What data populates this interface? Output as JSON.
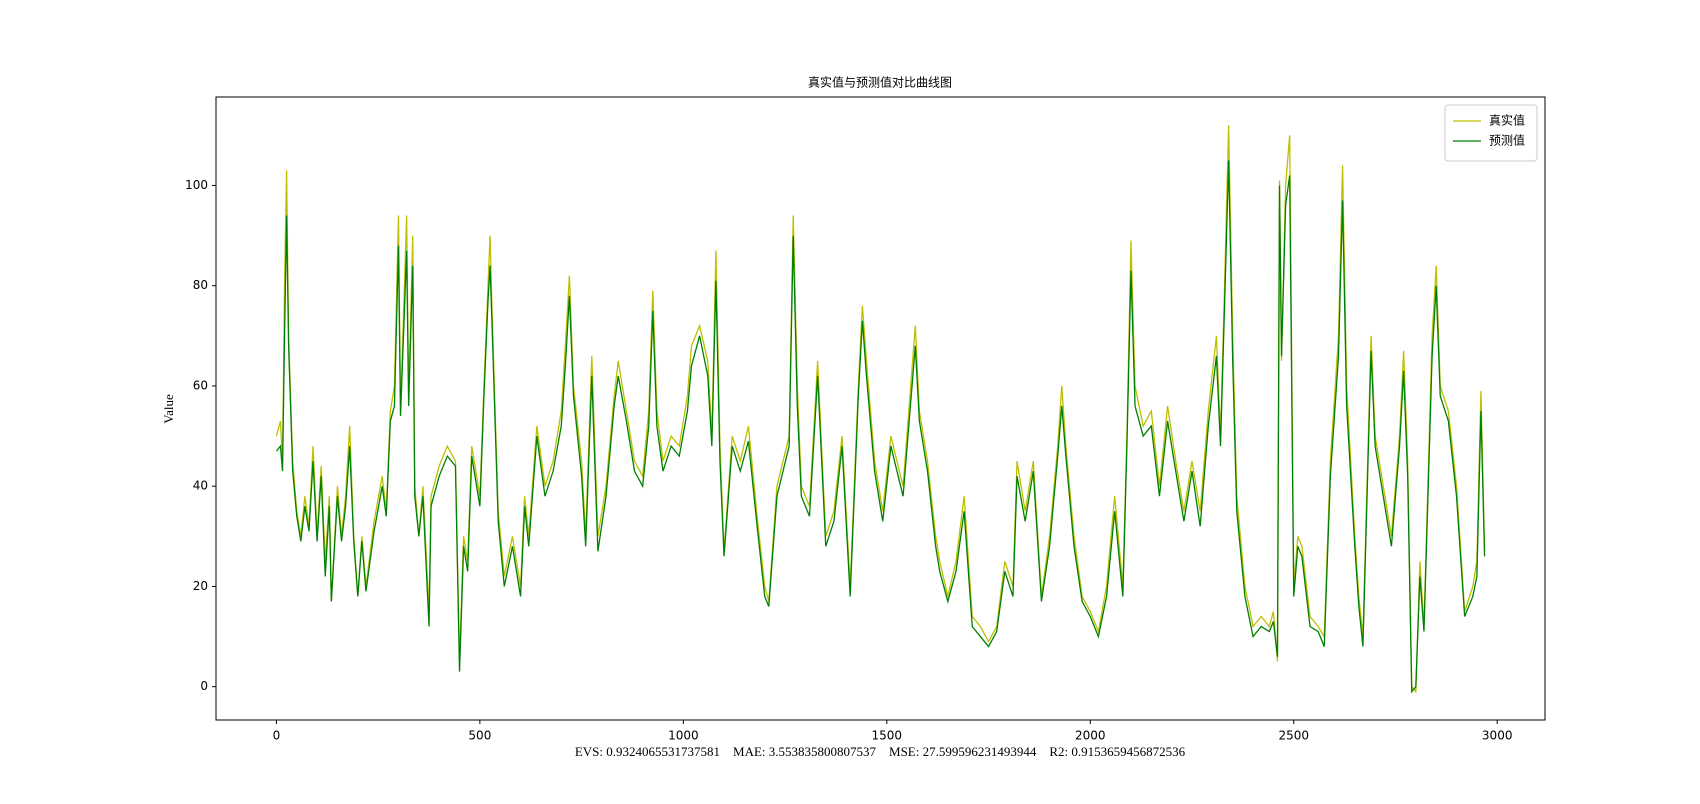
{
  "chart_data": {
    "type": "line",
    "title": "真实值与预测值对比曲线图",
    "y_label": "Value",
    "x_label": "EVS: 0.9324065531737581    MAE: 3.553835800807537    MSE: 27.599596231493944    R2: 0.9153659456872536",
    "legend": "upper right",
    "x": [
      0,
      10,
      15,
      20,
      25,
      30,
      40,
      50,
      60,
      70,
      80,
      90,
      100,
      110,
      120,
      130,
      135,
      150,
      160,
      170,
      180,
      190,
      200,
      210,
      220,
      240,
      260,
      270,
      280,
      290,
      300,
      305,
      320,
      325,
      335,
      340,
      350,
      360,
      375,
      380,
      400,
      420,
      440,
      450,
      460,
      470,
      480,
      500,
      510,
      520,
      525,
      530,
      545,
      560,
      580,
      600,
      610,
      620,
      640,
      660,
      680,
      700,
      710,
      720,
      730,
      750,
      760,
      775,
      790,
      810,
      830,
      840,
      860,
      880,
      900,
      915,
      925,
      935,
      950,
      970,
      990,
      1010,
      1020,
      1040,
      1060,
      1070,
      1080,
      1090,
      1100,
      1120,
      1140,
      1160,
      1180,
      1200,
      1210,
      1230,
      1260,
      1270,
      1280,
      1290,
      1310,
      1330,
      1350,
      1370,
      1390,
      1410,
      1430,
      1440,
      1450,
      1470,
      1490,
      1510,
      1540,
      1570,
      1580,
      1600,
      1620,
      1630,
      1650,
      1670,
      1690,
      1710,
      1730,
      1750,
      1770,
      1790,
      1810,
      1820,
      1840,
      1860,
      1880,
      1900,
      1920,
      1930,
      1940,
      1960,
      1980,
      2000,
      2020,
      2040,
      2060,
      2080,
      2090,
      2100,
      2110,
      2130,
      2150,
      2170,
      2190,
      2210,
      2230,
      2250,
      2270,
      2290,
      2310,
      2320,
      2330,
      2340,
      2350,
      2360,
      2380,
      2400,
      2420,
      2440,
      2450,
      2460,
      2465,
      2470,
      2480,
      2490,
      2500,
      2510,
      2520,
      2540,
      2560,
      2575,
      2590,
      2610,
      2620,
      2630,
      2650,
      2660,
      2670,
      2690,
      2700,
      2720,
      2740,
      2760,
      2770,
      2780,
      2790,
      2800,
      2810,
      2820,
      2840,
      2850,
      2860,
      2880,
      2900,
      2920,
      2940,
      2950,
      2960,
      2969
    ],
    "series": [
      {
        "name": "真实值",
        "color": "#bfbf00",
        "values": [
          50,
          53,
          45,
          80,
          103,
          70,
          45,
          35,
          30,
          38,
          32,
          48,
          30,
          44,
          25,
          38,
          17,
          40,
          30,
          38,
          52,
          30,
          18,
          30,
          20,
          33,
          42,
          35,
          55,
          60,
          94,
          55,
          94,
          58,
          90,
          40,
          30,
          40,
          15,
          38,
          44,
          48,
          45,
          5,
          30,
          25,
          48,
          38,
          60,
          80,
          90,
          75,
          35,
          22,
          30,
          20,
          38,
          30,
          52,
          40,
          45,
          55,
          68,
          82,
          60,
          45,
          30,
          66,
          30,
          40,
          58,
          65,
          55,
          45,
          42,
          55,
          79,
          55,
          45,
          50,
          48,
          58,
          68,
          72,
          65,
          50,
          87,
          48,
          27,
          50,
          45,
          52,
          35,
          20,
          17,
          40,
          50,
          94,
          60,
          40,
          36,
          65,
          30,
          35,
          50,
          20,
          60,
          76,
          65,
          45,
          35,
          50,
          40,
          72,
          55,
          45,
          30,
          25,
          18,
          25,
          38,
          14,
          12,
          9,
          12,
          25,
          20,
          45,
          35,
          45,
          18,
          30,
          48,
          60,
          48,
          30,
          18,
          15,
          11,
          20,
          38,
          20,
          50,
          89,
          60,
          52,
          55,
          40,
          56,
          45,
          35,
          45,
          35,
          55,
          70,
          50,
          80,
          112,
          70,
          38,
          20,
          12,
          14,
          12,
          15,
          5,
          101,
          65,
          100,
          110,
          20,
          30,
          28,
          14,
          12,
          10,
          45,
          70,
          104,
          60,
          30,
          18,
          10,
          70,
          50,
          40,
          30,
          50,
          67,
          45,
          0,
          -1,
          25,
          12,
          70,
          84,
          60,
          55,
          40,
          15,
          20,
          25,
          59,
          27
        ]
      },
      {
        "name": "预测值",
        "color": "#008000",
        "values": [
          47,
          48,
          43,
          70,
          94,
          68,
          43,
          34,
          29,
          36,
          31,
          45,
          29,
          42,
          22,
          36,
          17,
          38,
          29,
          36,
          48,
          29,
          18,
          29,
          19,
          31,
          40,
          34,
          53,
          56,
          88,
          54,
          87,
          56,
          84,
          38,
          30,
          38,
          12,
          36,
          42,
          46,
          44,
          3,
          28,
          23,
          46,
          36,
          58,
          77,
          84,
          72,
          33,
          20,
          28,
          18,
          36,
          28,
          50,
          38,
          43,
          52,
          64,
          78,
          58,
          42,
          28,
          62,
          27,
          38,
          56,
          62,
          53,
          43,
          40,
          52,
          75,
          52,
          43,
          48,
          46,
          55,
          64,
          70,
          62,
          48,
          81,
          45,
          26,
          48,
          43,
          49,
          33,
          18,
          16,
          38,
          48,
          90,
          56,
          38,
          34,
          62,
          28,
          33,
          48,
          18,
          58,
          73,
          62,
          43,
          33,
          48,
          38,
          68,
          53,
          43,
          28,
          23,
          17,
          23,
          35,
          12,
          10,
          8,
          11,
          23,
          18,
          42,
          33,
          43,
          17,
          28,
          46,
          56,
          46,
          28,
          17,
          14,
          10,
          18,
          35,
          18,
          48,
          83,
          56,
          50,
          52,
          38,
          53,
          43,
          33,
          43,
          32,
          52,
          66,
          48,
          76,
          105,
          65,
          35,
          18,
          10,
          12,
          11,
          13,
          6,
          100,
          66,
          96,
          102,
          18,
          28,
          26,
          12,
          11,
          8,
          42,
          66,
          97,
          56,
          28,
          16,
          8,
          67,
          48,
          38,
          28,
          48,
          63,
          42,
          -1,
          0,
          22,
          11,
          66,
          80,
          58,
          53,
          38,
          14,
          18,
          22,
          55,
          26
        ]
      }
    ],
    "xlim": [
      -148.45,
      3117.45
    ],
    "xticks": [
      0,
      500,
      1000,
      1500,
      2000,
      2500,
      3000
    ],
    "ylim": [
      -6.65,
      117.65
    ],
    "yticks": [
      0,
      20,
      40,
      60,
      80,
      100
    ]
  }
}
